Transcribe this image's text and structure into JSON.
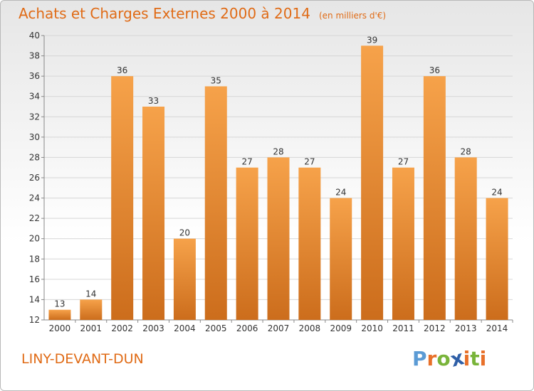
{
  "header": {
    "title": "Achats et Charges Externes 2000 à 2014",
    "subtitle": "(en milliers d'€)"
  },
  "footer": {
    "place": "LINY-DEVANT-DUN",
    "logo": [
      "P",
      "r",
      "o",
      "x",
      "i",
      "t",
      "i"
    ]
  },
  "colors": {
    "bar_light": "#f6a24a",
    "bar_dark": "#cc6d1c",
    "title": "#e06b16",
    "logo": [
      "#5b9bd5",
      "#e8702a",
      "#79b43a",
      "#2f5fa7",
      "#e8702a",
      "#79b43a",
      "#e8702a"
    ]
  },
  "chart_data": {
    "type": "bar",
    "categories": [
      "2000",
      "2001",
      "2002",
      "2003",
      "2004",
      "2005",
      "2006",
      "2007",
      "2008",
      "2009",
      "2010",
      "2011",
      "2012",
      "2013",
      "2014"
    ],
    "values": [
      13,
      14,
      36,
      33,
      20,
      35,
      27,
      28,
      27,
      24,
      39,
      27,
      36,
      28,
      24
    ],
    "ylim": [
      12,
      40
    ],
    "yticks": [
      12,
      14,
      16,
      18,
      20,
      22,
      24,
      26,
      28,
      30,
      32,
      34,
      36,
      38,
      40
    ],
    "grid": true
  }
}
